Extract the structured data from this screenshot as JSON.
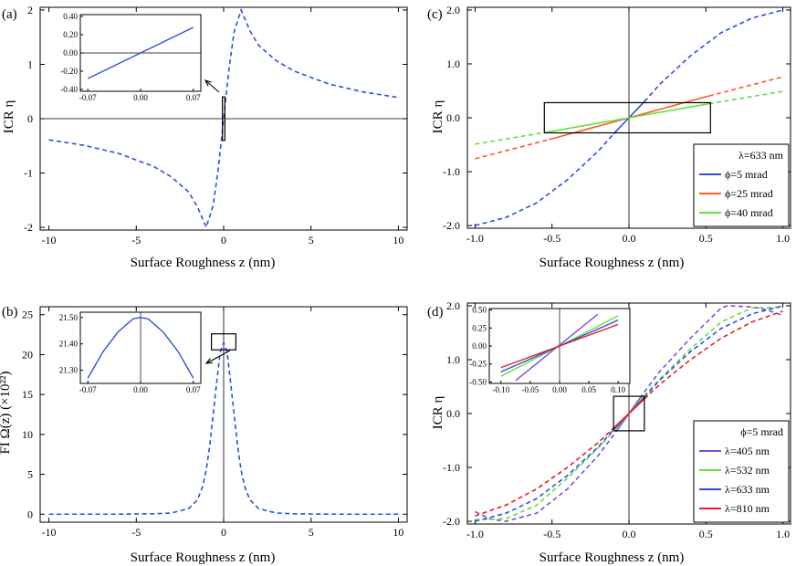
{
  "chart_data": [
    {
      "panel": "(a)",
      "type": "line",
      "xlabel": "Surface Roughness  z (nm)",
      "ylabel": "ICR η",
      "xlim": [
        -10.5,
        10.5
      ],
      "ylim": [
        -2.05,
        2.05
      ],
      "xticks": [
        -10,
        -5,
        0,
        5,
        10
      ],
      "yticks": [
        -2,
        -1,
        0,
        1,
        2
      ],
      "grid": false,
      "reference_lines": {
        "horizontal_at_zero": true,
        "vertical_at_zero": false
      },
      "series": [
        {
          "name": "η(z)",
          "style": "dashed",
          "color": "#2d4fe0",
          "x": [
            -10,
            -8,
            -6,
            -4,
            -3,
            -2,
            -1.5,
            -1.0,
            -0.6,
            -0.3,
            0,
            0.3,
            0.6,
            1.0,
            1.5,
            2,
            3,
            4,
            6,
            8,
            10
          ],
          "y": [
            -0.39,
            -0.49,
            -0.64,
            -0.88,
            -1.07,
            -1.35,
            -1.62,
            -2.0,
            -1.6,
            -0.9,
            0,
            0.9,
            1.6,
            2.0,
            1.62,
            1.35,
            1.07,
            0.88,
            0.64,
            0.49,
            0.39
          ]
        }
      ],
      "box": {
        "x": [
          -0.07,
          0.07
        ],
        "y": [
          -0.4,
          0.4
        ]
      },
      "inset": {
        "xlim": [
          -0.08,
          0.08
        ],
        "ylim": [
          -0.42,
          0.42
        ],
        "xticks": [
          "-0.07",
          "0.00",
          "0.07"
        ],
        "yticks": [
          "0.40",
          "0.20",
          "0.00",
          "-0.20",
          "-0.40"
        ],
        "reference_lines": {
          "horizontal_at_zero": true
        },
        "series": [
          {
            "style": "solid",
            "color": "#2d4fe0",
            "x": [
              -0.07,
              0.07
            ],
            "y": [
              -0.28,
              0.28
            ]
          }
        ]
      }
    },
    {
      "panel": "(b)",
      "type": "line",
      "xlabel": "Surface Roughness  z (nm)",
      "ylabel": "FI  Ω(z) (×10²²)",
      "xlim": [
        -10.5,
        10.5
      ],
      "ylim": [
        -1,
        26
      ],
      "xticks": [
        -10,
        -5,
        0,
        5,
        10
      ],
      "yticks": [
        0,
        5,
        10,
        15,
        20,
        25
      ],
      "grid": false,
      "reference_lines": {
        "horizontal_at_zero": false,
        "vertical_at_zero": true
      },
      "series": [
        {
          "name": "Ω(z)",
          "style": "dashed",
          "color": "#2d4fe0",
          "x": [
            -10,
            -6,
            -4,
            -3,
            -2,
            -1.5,
            -1.2,
            -1.0,
            -0.8,
            -0.6,
            -0.4,
            -0.2,
            0,
            0.2,
            0.4,
            0.6,
            0.8,
            1.0,
            1.2,
            1.5,
            2,
            3,
            4,
            6,
            10
          ],
          "y": [
            0,
            0,
            0.05,
            0.15,
            0.7,
            1.8,
            3.5,
            5.5,
            8.5,
            12.5,
            16.5,
            20.3,
            21.5,
            20.3,
            16.5,
            12.5,
            8.5,
            5.5,
            3.5,
            1.8,
            0.7,
            0.15,
            0.05,
            0,
            0
          ]
        }
      ],
      "box": {
        "x": [
          -0.7,
          0.7
        ],
        "y": [
          20.6,
          22.6
        ]
      },
      "inset": {
        "xlim": [
          -0.08,
          0.08
        ],
        "ylim": [
          21.25,
          21.52
        ],
        "xticks": [
          "-0.07",
          "0.00",
          "0.07"
        ],
        "yticks": [
          "21.50",
          "21.40",
          "21.30"
        ],
        "reference_lines": {
          "vertical_at_zero": true
        },
        "series": [
          {
            "style": "solid",
            "color": "#2d4fe0",
            "x": [
              -0.07,
              -0.05,
              -0.03,
              -0.01,
              0,
              0.01,
              0.03,
              0.05,
              0.07
            ],
            "y": [
              21.27,
              21.37,
              21.445,
              21.495,
              21.5,
              21.495,
              21.445,
              21.37,
              21.27
            ]
          }
        ]
      }
    },
    {
      "panel": "(c)",
      "type": "line",
      "xlabel": "Surface Roughness  z (nm)",
      "ylabel": "ICR η",
      "xlim": [
        -1.05,
        1.05
      ],
      "ylim": [
        -2.05,
        2.05
      ],
      "xticks": [
        "-1.0",
        "-0.5",
        "0.0",
        "0.5",
        "1.0"
      ],
      "yticks": [
        "2.0",
        "1.0",
        "0.0",
        "-1.0",
        "-2.0"
      ],
      "grid": false,
      "reference_lines": {
        "horizontal_at_zero": false,
        "vertical_at_zero": true
      },
      "legend": {
        "placement": "bottom-right",
        "header": "λ=633 nm",
        "entries": [
          {
            "label": "ϕ=5 mrad",
            "color": "#2d4fe0"
          },
          {
            "label": "ϕ=25 mrad",
            "color": "#ff5a2a"
          },
          {
            "label": "ϕ=40 mrad",
            "color": "#66e03a"
          }
        ]
      },
      "box": {
        "x": [
          -0.55,
          0.53
        ],
        "y": [
          -0.28,
          0.28
        ]
      },
      "series": [
        {
          "name": "ϕ=5 mrad",
          "color": "#2d4fe0",
          "x": [
            -1.0,
            -0.8,
            -0.6,
            -0.4,
            -0.2,
            -0.1,
            0,
            0.1,
            0.2,
            0.4,
            0.6,
            0.8,
            1.0
          ],
          "y": [
            -2.0,
            -1.85,
            -1.58,
            -1.15,
            -0.62,
            -0.3,
            0,
            0.3,
            0.62,
            1.15,
            1.58,
            1.85,
            2.0
          ],
          "solid_range": [
            -0.1,
            0.1
          ]
        },
        {
          "name": "ϕ=25 mrad",
          "color": "#ff5a2a",
          "x": [
            -1.0,
            -0.5,
            0,
            0.5,
            1.0
          ],
          "y": [
            -0.76,
            -0.39,
            0,
            0.39,
            0.76
          ],
          "solid_range": [
            -0.52,
            0.52
          ]
        },
        {
          "name": "ϕ=40 mrad",
          "color": "#66e03a",
          "x": [
            -1.0,
            -0.5,
            0,
            0.5,
            1.0
          ],
          "y": [
            -0.49,
            -0.25,
            0,
            0.25,
            0.49
          ],
          "solid_range": [
            -0.52,
            0.52
          ]
        }
      ]
    },
    {
      "panel": "(d)",
      "type": "line",
      "xlabel": "Surface Roughness  z (nm)",
      "ylabel": "ICR η",
      "xlim": [
        -1.05,
        1.05
      ],
      "ylim": [
        -2.05,
        2.05
      ],
      "xticks": [
        "-1.0",
        "-0.5",
        "0.0",
        "0.5",
        "1.0"
      ],
      "yticks": [
        "2.0",
        "1.0",
        "0.0",
        "-1.0",
        "-2.0"
      ],
      "grid": false,
      "reference_lines": {
        "horizontal_at_zero": false,
        "vertical_at_zero": true
      },
      "legend": {
        "placement": "bottom-right",
        "header": "ϕ=5 mrad",
        "entries": [
          {
            "label": "λ=405 nm",
            "color": "#7a4ee0"
          },
          {
            "label": "λ=532 nm",
            "color": "#66e03a"
          },
          {
            "label": "λ=633 nm",
            "color": "#2d4fe0"
          },
          {
            "label": "λ=810 nm",
            "color": "#e62020"
          }
        ]
      },
      "box": {
        "x": [
          -0.1,
          0.1
        ],
        "y": [
          -0.32,
          0.32
        ]
      },
      "series": [
        {
          "name": "λ=405 nm",
          "color": "#7a4ee0",
          "x": [
            -1.0,
            -0.9,
            -0.8,
            -0.6,
            -0.4,
            -0.2,
            -0.1,
            0,
            0.1,
            0.2,
            0.4,
            0.6,
            0.64,
            0.8,
            0.9,
            1.0
          ],
          "y": [
            -1.82,
            -1.96,
            -2.0,
            -1.85,
            -1.4,
            -0.78,
            -0.4,
            0,
            0.4,
            0.78,
            1.4,
            1.96,
            2.0,
            1.98,
            1.92,
            1.82
          ],
          "solid_range": [
            -0.07,
            0.07
          ]
        },
        {
          "name": "λ=532 nm",
          "color": "#66e03a",
          "x": [
            -1.0,
            -0.8,
            -0.6,
            -0.4,
            -0.2,
            -0.1,
            0,
            0.1,
            0.2,
            0.4,
            0.6,
            0.8,
            1.0
          ],
          "y": [
            -1.97,
            -1.95,
            -1.7,
            -1.2,
            -0.64,
            -0.33,
            0,
            0.33,
            0.64,
            1.2,
            1.7,
            1.96,
            1.97
          ],
          "solid_range": [
            -0.1,
            0.1
          ]
        },
        {
          "name": "λ=633 nm",
          "color": "#2d4fe0",
          "x": [
            -1.0,
            -0.8,
            -0.6,
            -0.4,
            -0.2,
            -0.1,
            0,
            0.1,
            0.2,
            0.4,
            0.6,
            0.8,
            1.0
          ],
          "y": [
            -2.0,
            -1.85,
            -1.58,
            -1.15,
            -0.62,
            -0.3,
            0,
            0.3,
            0.62,
            1.15,
            1.58,
            1.85,
            2.0
          ],
          "solid_range": [
            -0.1,
            0.1
          ]
        },
        {
          "name": "λ=810 nm",
          "color": "#e62020",
          "x": [
            -1.0,
            -0.8,
            -0.6,
            -0.4,
            -0.2,
            -0.1,
            0,
            0.1,
            0.2,
            0.4,
            0.6,
            0.8,
            1.0
          ],
          "y": [
            -1.9,
            -1.7,
            -1.4,
            -1.0,
            -0.54,
            -0.27,
            0,
            0.27,
            0.54,
            1.0,
            1.4,
            1.7,
            1.9
          ],
          "solid_range": [
            -0.1,
            0.1
          ]
        }
      ],
      "inset": {
        "xlim": [
          -0.12,
          0.12
        ],
        "ylim": [
          -0.52,
          0.52
        ],
        "xticks": [
          "-0.10",
          "-0.05",
          "0.00",
          "0.05",
          "0.10"
        ],
        "yticks": [
          "0.50",
          "0.25",
          "0.00",
          "-0.25",
          "-0.50"
        ],
        "reference_lines": {
          "vertical_at_zero": true
        },
        "series": [
          {
            "color": "#7a4ee0",
            "x": [
              -0.075,
              0.065
            ],
            "y": [
              -0.48,
              0.44
            ]
          },
          {
            "color": "#66e03a",
            "x": [
              -0.1,
              0.1
            ],
            "y": [
              -0.42,
              0.42
            ]
          },
          {
            "color": "#2d4fe0",
            "x": [
              -0.1,
              0.1
            ],
            "y": [
              -0.36,
              0.36
            ]
          },
          {
            "color": "#e62020",
            "x": [
              -0.1,
              0.1
            ],
            "y": [
              -0.3,
              0.3
            ]
          }
        ]
      }
    }
  ]
}
